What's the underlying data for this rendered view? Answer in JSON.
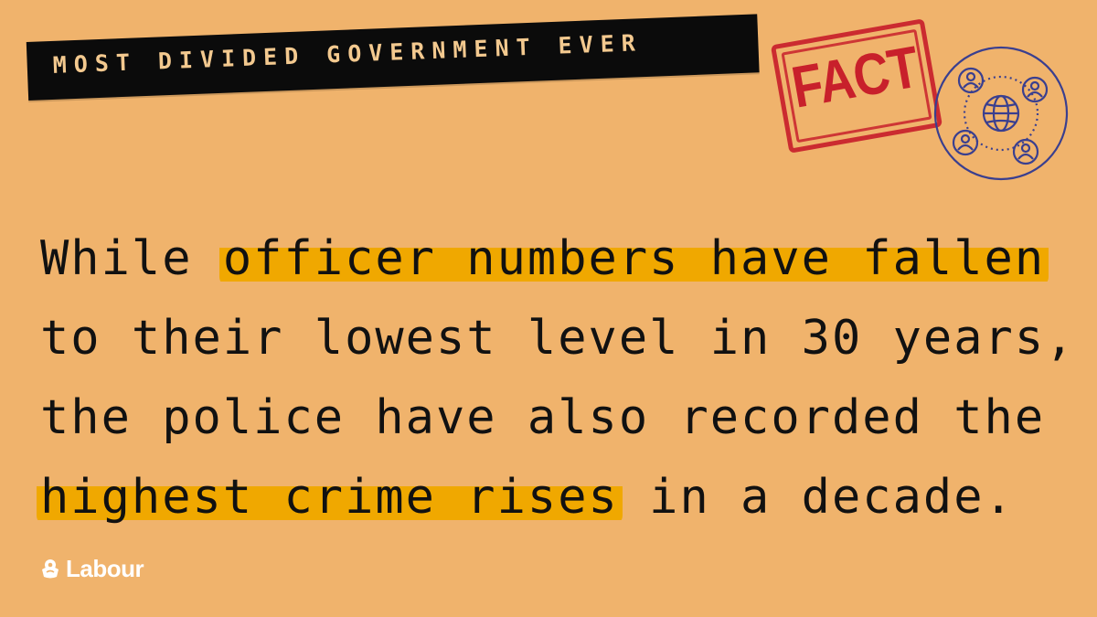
{
  "headline": {
    "tape_text": "MOST DIVIDED GOVERNMENT EVER"
  },
  "stamp": {
    "text": "FACT",
    "color": "#c8202b"
  },
  "icon": {
    "name": "community-globe-icon",
    "color": "#3a3f8f"
  },
  "statement": {
    "line1_a": "While ",
    "line1_b": "officer numbers have fallen",
    "line2": "to their lowest level in 30 years,",
    "line3": "the police have also recorded the",
    "line4_a": "highest crime rises",
    "line4_b": " in a decade.",
    "highlight_color": "#f0a800"
  },
  "brand": {
    "logo_text": "Labour"
  },
  "colors": {
    "background": "#f0b36c",
    "text": "#111111",
    "tape": "#0b0b0b"
  }
}
